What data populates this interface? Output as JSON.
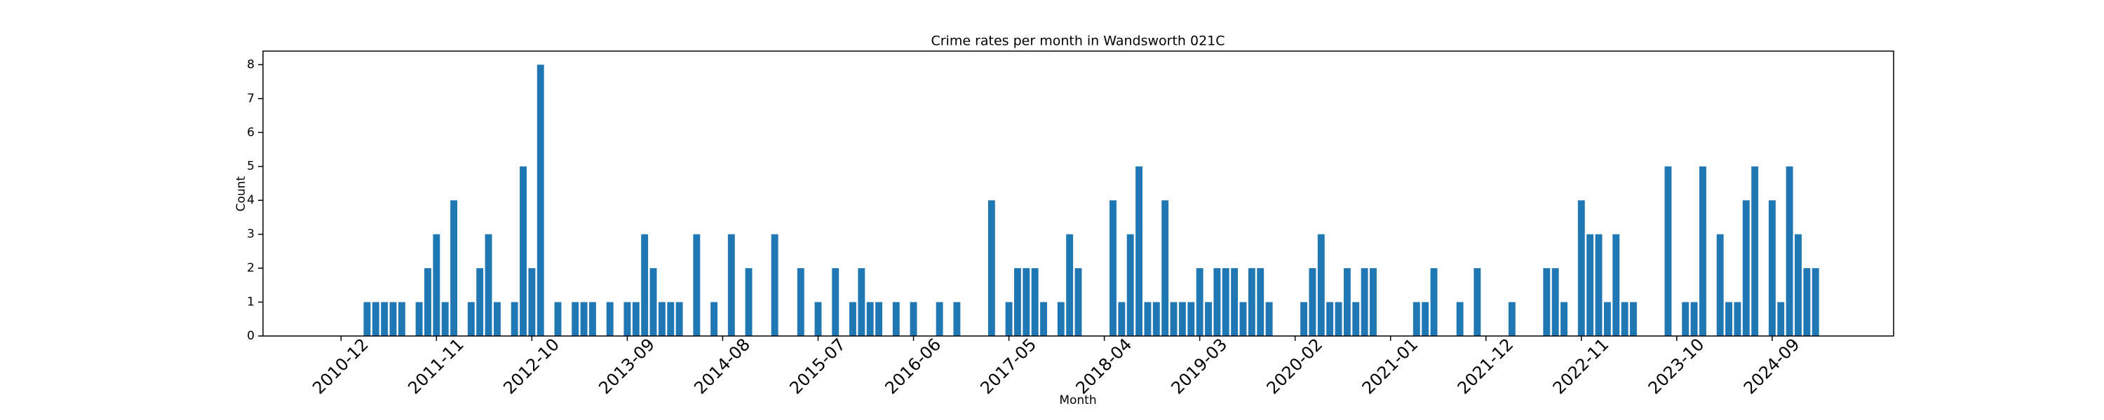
{
  "chart_data": {
    "type": "bar",
    "title": "Crime rates per month in Wandsworth 021C",
    "xlabel": "Month",
    "ylabel": "Count",
    "series": [
      {
        "name": "Count",
        "color": "#1f77b4",
        "x": [
          "2011-03",
          "2011-04",
          "2011-05",
          "2011-06",
          "2011-07",
          "2011-09",
          "2011-10",
          "2011-11",
          "2011-12",
          "2012-01",
          "2012-03",
          "2012-04",
          "2012-05",
          "2012-06",
          "2012-08",
          "2012-09",
          "2012-10",
          "2012-11",
          "2013-01",
          "2013-03",
          "2013-04",
          "2013-05",
          "2013-07",
          "2013-09",
          "2013-10",
          "2013-11",
          "2013-12",
          "2014-01",
          "2014-02",
          "2014-03",
          "2014-05",
          "2014-07",
          "2014-09",
          "2014-11",
          "2015-02",
          "2015-05",
          "2015-07",
          "2015-09",
          "2015-11",
          "2015-12",
          "2016-01",
          "2016-02",
          "2016-04",
          "2016-06",
          "2016-09",
          "2016-11",
          "2017-03",
          "2017-05",
          "2017-06",
          "2017-07",
          "2017-08",
          "2017-09",
          "2017-11",
          "2017-12",
          "2018-01",
          "2018-05",
          "2018-06",
          "2018-07",
          "2018-08",
          "2018-09",
          "2018-10",
          "2018-11",
          "2018-12",
          "2019-01",
          "2019-02",
          "2019-03",
          "2019-04",
          "2019-05",
          "2019-06",
          "2019-07",
          "2019-08",
          "2019-09",
          "2019-10",
          "2019-11",
          "2020-03",
          "2020-04",
          "2020-05",
          "2020-06",
          "2020-07",
          "2020-08",
          "2020-09",
          "2020-10",
          "2020-11",
          "2021-04",
          "2021-05",
          "2021-06",
          "2021-09",
          "2021-11",
          "2022-03",
          "2022-07",
          "2022-08",
          "2022-09",
          "2022-11",
          "2022-12",
          "2023-01",
          "2023-02",
          "2023-03",
          "2023-04",
          "2023-05",
          "2023-09",
          "2023-11",
          "2023-12",
          "2024-01",
          "2024-03",
          "2024-04",
          "2024-05",
          "2024-06",
          "2024-07",
          "2024-09",
          "2024-10",
          "2024-11",
          "2024-12",
          "2025-01",
          "2025-02"
        ],
        "values": [
          1,
          1,
          1,
          1,
          1,
          1,
          2,
          3,
          1,
          4,
          1,
          2,
          3,
          1,
          1,
          5,
          2,
          8,
          1,
          1,
          1,
          1,
          1,
          1,
          1,
          3,
          2,
          1,
          1,
          1,
          3,
          1,
          3,
          2,
          3,
          2,
          1,
          2,
          1,
          2,
          1,
          1,
          1,
          1,
          1,
          1,
          4,
          1,
          2,
          2,
          2,
          1,
          1,
          3,
          2,
          4,
          1,
          3,
          5,
          1,
          1,
          4,
          1,
          1,
          1,
          2,
          1,
          2,
          2,
          2,
          1,
          2,
          2,
          1,
          1,
          2,
          3,
          1,
          1,
          2,
          1,
          2,
          2,
          1,
          1,
          2,
          1,
          2,
          1,
          2,
          2,
          1,
          4,
          3,
          3,
          1,
          3,
          1,
          1,
          5,
          1,
          1,
          5,
          3,
          1,
          1,
          4,
          5,
          4,
          1,
          5,
          3,
          2,
          2
        ]
      }
    ],
    "xlim": [
      "2010-03",
      "2025-11"
    ],
    "xticks": [
      "2010-12",
      "2011-11",
      "2012-10",
      "2013-09",
      "2014-08",
      "2015-07",
      "2016-06",
      "2017-05",
      "2018-04",
      "2019-03",
      "2020-02",
      "2021-01",
      "2021-12",
      "2022-11",
      "2023-10",
      "2024-09"
    ],
    "ylim": [
      0,
      8.4
    ],
    "yticks": [
      0,
      1,
      2,
      3,
      4,
      5,
      6,
      7,
      8
    ],
    "grid": false
  }
}
